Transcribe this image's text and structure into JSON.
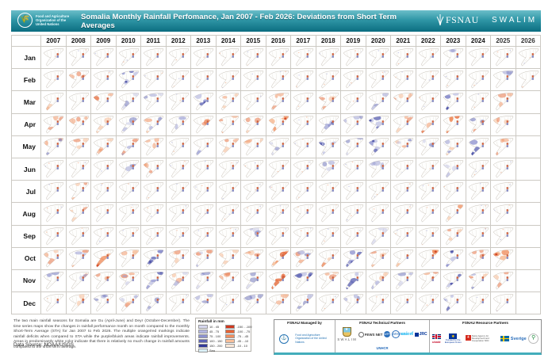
{
  "header": {
    "title": "Somalia Monthly Rainfall Perfomance, Jan 2007 - Feb 2026: Deviations from Short Term Averages",
    "fao_text": "Food and Agriculture\nOrganization of the\nUnited Nations",
    "fsnau_label": "FSNAU",
    "swalim_label": "SWALIM"
  },
  "grid": {
    "years": [
      "2007",
      "2008",
      "2009",
      "2010",
      "2011",
      "2012",
      "2013",
      "2014",
      "2015",
      "2016",
      "2017",
      "2018",
      "2019",
      "2020",
      "2021",
      "2022",
      "2023",
      "2024",
      "2025",
      "2026"
    ],
    "months": [
      "Jan",
      "Feb",
      "Mar",
      "Apr",
      "May",
      "Jun",
      "Jul",
      "Aug",
      "Sep",
      "Oct",
      "Nov",
      "Dec"
    ],
    "cell_patterns": [
      "nnnnnnnnnnnnnnnnbnnn",
      "nonBnnnnnnnnnnnnnnbn",
      "onobbnBonononbonBno-",
      "ooobmboooOnBbBooOmo-",
      "moomonboobnBbBmbmBo-",
      "nnnbonnnnnnbnbnnbnn-",
      "nonnnnnnnnnnnnnnnnn-",
      "nonnnnnnnnnnnnnnonn-",
      "nnnnnnnnbnnnnbnnonn-",
      "omOoBomooOmoBooOBoO-",
      "bmomBmbobOBoBmboBmo-",
      "nobmbnbnbobnbnnnBnn-"
    ]
  },
  "legend": {
    "title": "Rainfall in mm",
    "blue_entries": [
      {
        "label": "10 - 45",
        "color": "#d6d7ee"
      },
      {
        "label": "45 - 75",
        "color": "#b3b6e0"
      },
      {
        "label": "75 - 100",
        "color": "#8d92cf"
      },
      {
        "label": "100 - 150",
        "color": "#5d63b5"
      },
      {
        "label": "150 - 200",
        "color": "#333a99"
      },
      {
        "label": "Sea",
        "color": "#d9eef5"
      }
    ],
    "red_entries": [
      {
        "label": "-150 - -100",
        "color": "#d0391f"
      },
      {
        "label": "-100 - -75",
        "color": "#e86335"
      },
      {
        "label": "-75 - -45",
        "color": "#f29061"
      },
      {
        "label": "-45 - -10",
        "color": "#f8bf9a"
      },
      {
        "label": "-10 - 10",
        "color": "#fde8d8"
      }
    ]
  },
  "footer": {
    "description": "The two main rainfall seasons for Somalia are Gu (April-June) and Deyr (October-December). The time series maps show the changes in rainfall performance month on month compared to the monthly Short-Term Average (STA) for Jan 2007 to Feb 2026. The multiple orange/red markings indicate rainfall deficits when compared to STA while the purple/bluish areas indicate rainfall improvements. Areas in predominantly white color indicate that there is relatively no much change in rainfall amounts compared to the short-term average.",
    "data_source": "Data Source: NOAA/USGS",
    "managed_by": {
      "label": "FSNAU Managed by",
      "org_text": "Food and Agriculture Organization of the United Nations"
    },
    "technical": {
      "label": "FSNAU Technical Partners",
      "swalim": "SWALIM",
      "fewsnet": "FEWS NET",
      "unicef": "unicef",
      "wfp": "WFP",
      "jrc": "JRC",
      "who": "WHO",
      "unhcr": "UNHCR"
    },
    "resource": {
      "label": "FSNAU Resource Partners",
      "ukaid": "ukaid",
      "eu_caption": "Funded by the European Union",
      "swiss_caption": "Swiss Agency for Development and Cooperation SDC",
      "sweden": "Sverige"
    }
  },
  "chart_data": {
    "type": "heatmap",
    "title": "Somalia Monthly Rainfall Perfomance, Jan 2007 - Feb 2026: Deviations from Short Term Averages",
    "x_categories": [
      "2007",
      "2008",
      "2009",
      "2010",
      "2011",
      "2012",
      "2013",
      "2014",
      "2015",
      "2016",
      "2017",
      "2018",
      "2019",
      "2020",
      "2021",
      "2022",
      "2023",
      "2024",
      "2025",
      "2026"
    ],
    "y_categories": [
      "Jan",
      "Feb",
      "Mar",
      "Apr",
      "May",
      "Jun",
      "Jul",
      "Aug",
      "Sep",
      "Oct",
      "Nov",
      "Dec"
    ],
    "unit": "mm deviation from monthly Short Term Average",
    "cell_encoding": {
      "n": "near average / little change (white)",
      "o": "moderate rainfall deficit (orange)",
      "O": "strong rainfall deficit (red-orange)",
      "b": "moderate rainfall surplus (blue)",
      "B": "strong rainfall surplus (blue-purple)",
      "m": "mixed surplus and deficit areas",
      "-": "no data (month not yet occurred)"
    },
    "cells": [
      "nnnnnnnnnnnnnnnnbnnn",
      "nonBnnnnnnnnnnnnnnbn",
      "onobbnBonononbonBno-",
      "ooobmboooOnBbBooOmo-",
      "moomonboobnBbBmbmBo-",
      "nnnbonnnnnnbnbnnbnn-",
      "nonnnnnnnnnnnnnnnnn-",
      "nonnnnnnnnnnnnnnonn-",
      "nnnnnnnnbnnnnbnnonn-",
      "omOoBomooOmoBooOBoO-",
      "bmomBmbobOBoBmboBmo-",
      "nobmbnbnbobnbnnnBnn-"
    ],
    "surplus_ranges_mm": [
      "10 - 45",
      "45 - 75",
      "75 - 100",
      "100 - 150",
      "150 - 200"
    ],
    "deficit_ranges_mm": [
      "-150 - -100",
      "-100 - -75",
      "-75 - -45",
      "-45 - -10",
      "-10 - 10"
    ],
    "legend_position": "bottom-left",
    "grid": true
  }
}
